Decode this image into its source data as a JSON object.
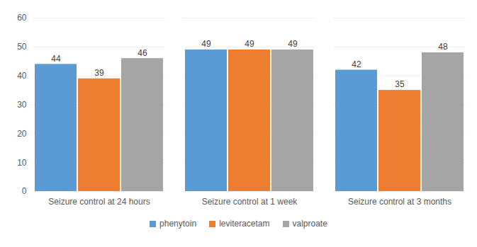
{
  "chart_data": {
    "type": "bar",
    "categories": [
      "Seizure control at 24 hours",
      "Seizure control at 1 week",
      "Seizure control at 3 months"
    ],
    "series": [
      {
        "name": "phenytoin",
        "color": "#5b9bd5",
        "values": [
          44,
          49,
          42
        ]
      },
      {
        "name": "leviteracetam",
        "color": "#ed7d31",
        "values": [
          39,
          49,
          35
        ]
      },
      {
        "name": "valproate",
        "color": "#a5a5a5",
        "values": [
          46,
          49,
          48
        ]
      }
    ],
    "ylim": [
      0,
      60
    ],
    "yticks": [
      0,
      10,
      20,
      30,
      40,
      50,
      60
    ],
    "grid": true,
    "data_labels": true,
    "legend": "bottom"
  }
}
